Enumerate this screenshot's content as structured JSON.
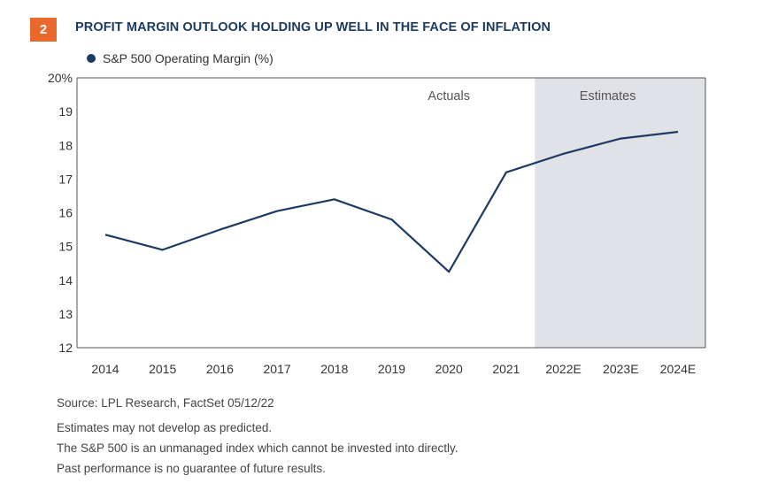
{
  "badge": "2",
  "title": "PROFIT MARGIN OUTLOOK HOLDING UP WELL IN THE FACE OF INFLATION",
  "legend": "S&P 500 Operating Margin (%)",
  "footnotes": {
    "source": "Source: LPL Research, FactSet  05/12/22",
    "line1": "Estimates may not develop as predicted.",
    "line2": "The S&P 500 is an unmanaged index which cannot be invested into directly.",
    "line3": "Past performance is no guarantee of future results."
  },
  "colors": {
    "line": "#1c3b63",
    "estimates_shade": "#e1e2e8",
    "badge": "#e8692b"
  },
  "chart_data": {
    "type": "line",
    "categories": [
      "2014",
      "2015",
      "2016",
      "2017",
      "2018",
      "2019",
      "2020",
      "2021",
      "2022E",
      "2023E",
      "2024E"
    ],
    "series": [
      {
        "name": "S&P 500 Operating Margin (%)",
        "values": [
          15.35,
          14.9,
          15.5,
          16.05,
          16.4,
          15.8,
          14.25,
          17.2,
          17.75,
          18.2,
          18.4
        ]
      }
    ],
    "ylim": [
      12,
      20
    ],
    "yticks": [
      12,
      13,
      14,
      15,
      16,
      17,
      18,
      19,
      20
    ],
    "ytick_labels": [
      "12",
      "13",
      "14",
      "15",
      "16",
      "17",
      "18",
      "19",
      "20%"
    ],
    "regions": [
      {
        "label": "Actuals",
        "from": "2014",
        "to": "2021"
      },
      {
        "label": "Estimates",
        "from": "2022E",
        "to": "2024E"
      }
    ],
    "grid": false,
    "legend_position": "top-left"
  }
}
